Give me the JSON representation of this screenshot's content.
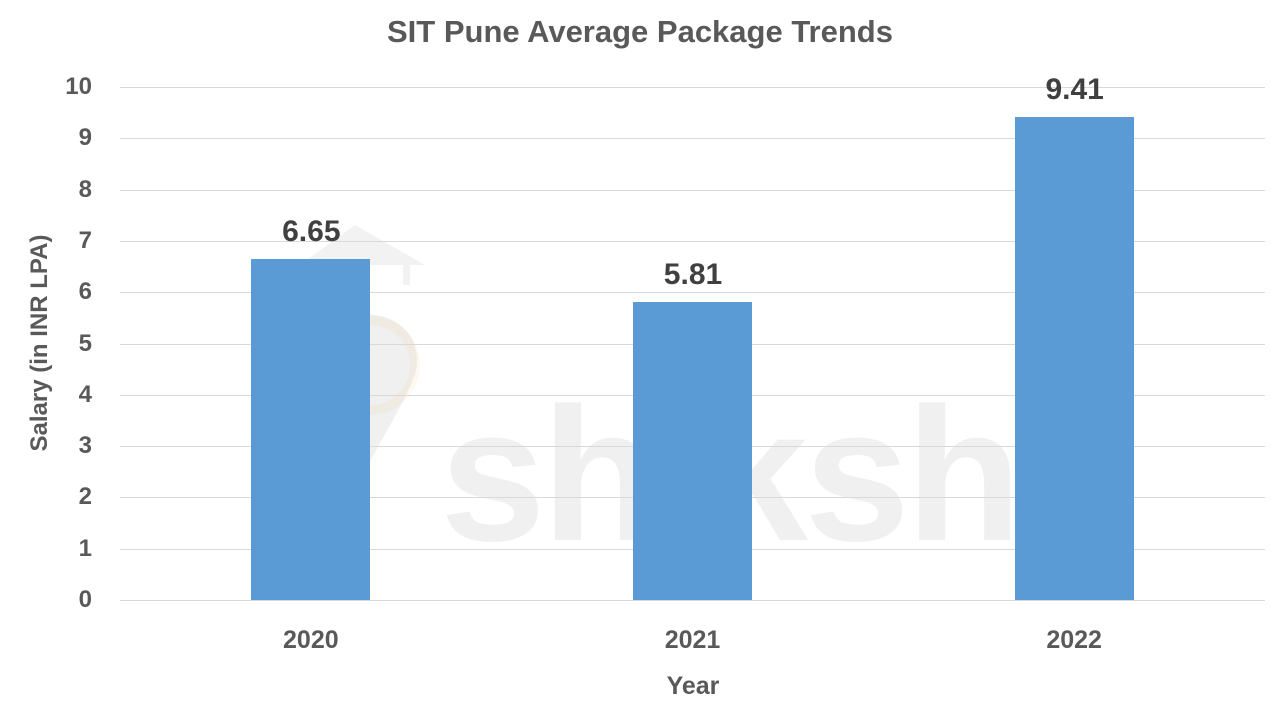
{
  "chart_data": {
    "type": "bar",
    "title": "SIT Pune Average Package Trends",
    "xlabel": "Year",
    "ylabel": "Salary (in INR LPA)",
    "categories": [
      "2020",
      "2021",
      "2022"
    ],
    "values": [
      6.65,
      5.81,
      9.41
    ],
    "data_labels": [
      "6.65",
      "5.81",
      "9.41"
    ],
    "ylim": [
      0,
      10
    ],
    "yticks": [
      "0",
      "1",
      "2",
      "3",
      "4",
      "5",
      "6",
      "7",
      "8",
      "9",
      "10"
    ],
    "grid": true,
    "legend": "none",
    "bar_color": "#5b9bd5"
  },
  "watermark": "shiksha"
}
